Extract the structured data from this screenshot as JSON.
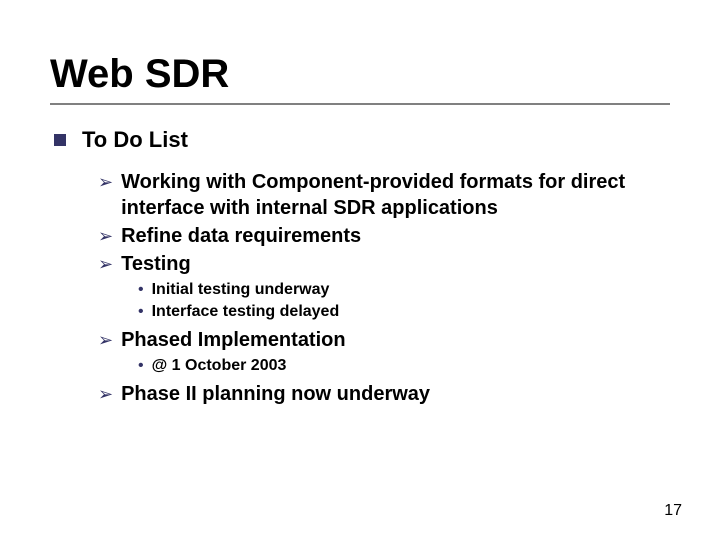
{
  "slide": {
    "title": "Web SDR",
    "page_number": "17",
    "colors": {
      "text": "#000000",
      "bullet": "#333366",
      "rule": "#808080",
      "background": "#ffffff"
    },
    "typography": {
      "font_family": "Verdana",
      "title_fontsize": 40,
      "level1_fontsize": 22,
      "level2_fontsize": 20,
      "level3_fontsize": 16
    },
    "content": {
      "level1_label": "To Do List",
      "items": [
        {
          "text": "Working with Component-provided formats for direct interface with internal SDR applications"
        },
        {
          "text": "Refine data requirements"
        },
        {
          "text": "Testing",
          "sub": [
            {
              "text": "Initial testing underway"
            },
            {
              "text": "Interface testing delayed"
            }
          ]
        },
        {
          "text": "Phased Implementation",
          "sub": [
            {
              "text": "@  1 October 2003"
            }
          ]
        },
        {
          "text": "Phase II planning now underway"
        }
      ]
    }
  }
}
